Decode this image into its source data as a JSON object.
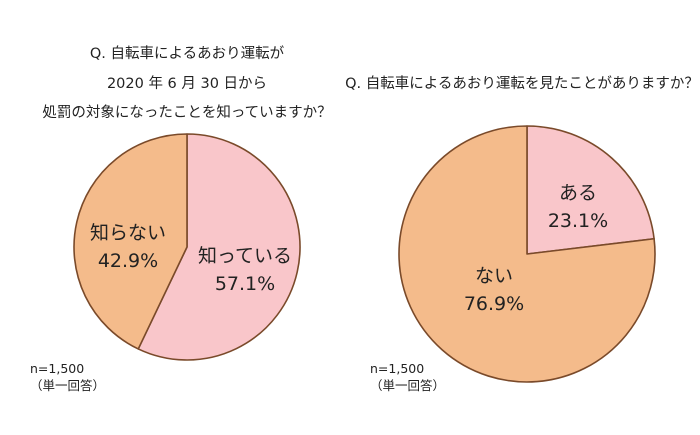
{
  "chart_data": [
    {
      "type": "pie",
      "title_lines": [
        "Q. 自転車によるあおり運転が",
        "2020 年 6 月 30 日から",
        "処罰の対象になったことを知っていますか？"
      ],
      "slices": [
        {
          "label": "知っている",
          "percent_text": "57.1%",
          "value": 57.1,
          "color": "#f9c6ca"
        },
        {
          "label": "知らない",
          "percent_text": "42.9%",
          "value": 42.9,
          "color": "#f4bb8b"
        }
      ],
      "note_lines": [
        "n=1,500",
        "（単一回答）"
      ]
    },
    {
      "type": "pie",
      "title_lines": [
        "Q. 自転車によるあおり運転を見たことがありますか？"
      ],
      "slices": [
        {
          "label": "ある",
          "percent_text": "23.1%",
          "value": 23.1,
          "color": "#f9c6ca"
        },
        {
          "label": "ない",
          "percent_text": "76.9%",
          "value": 76.9,
          "color": "#f4bb8b"
        }
      ],
      "note_lines": [
        "n=1,500",
        "（単一回答）"
      ]
    }
  ]
}
